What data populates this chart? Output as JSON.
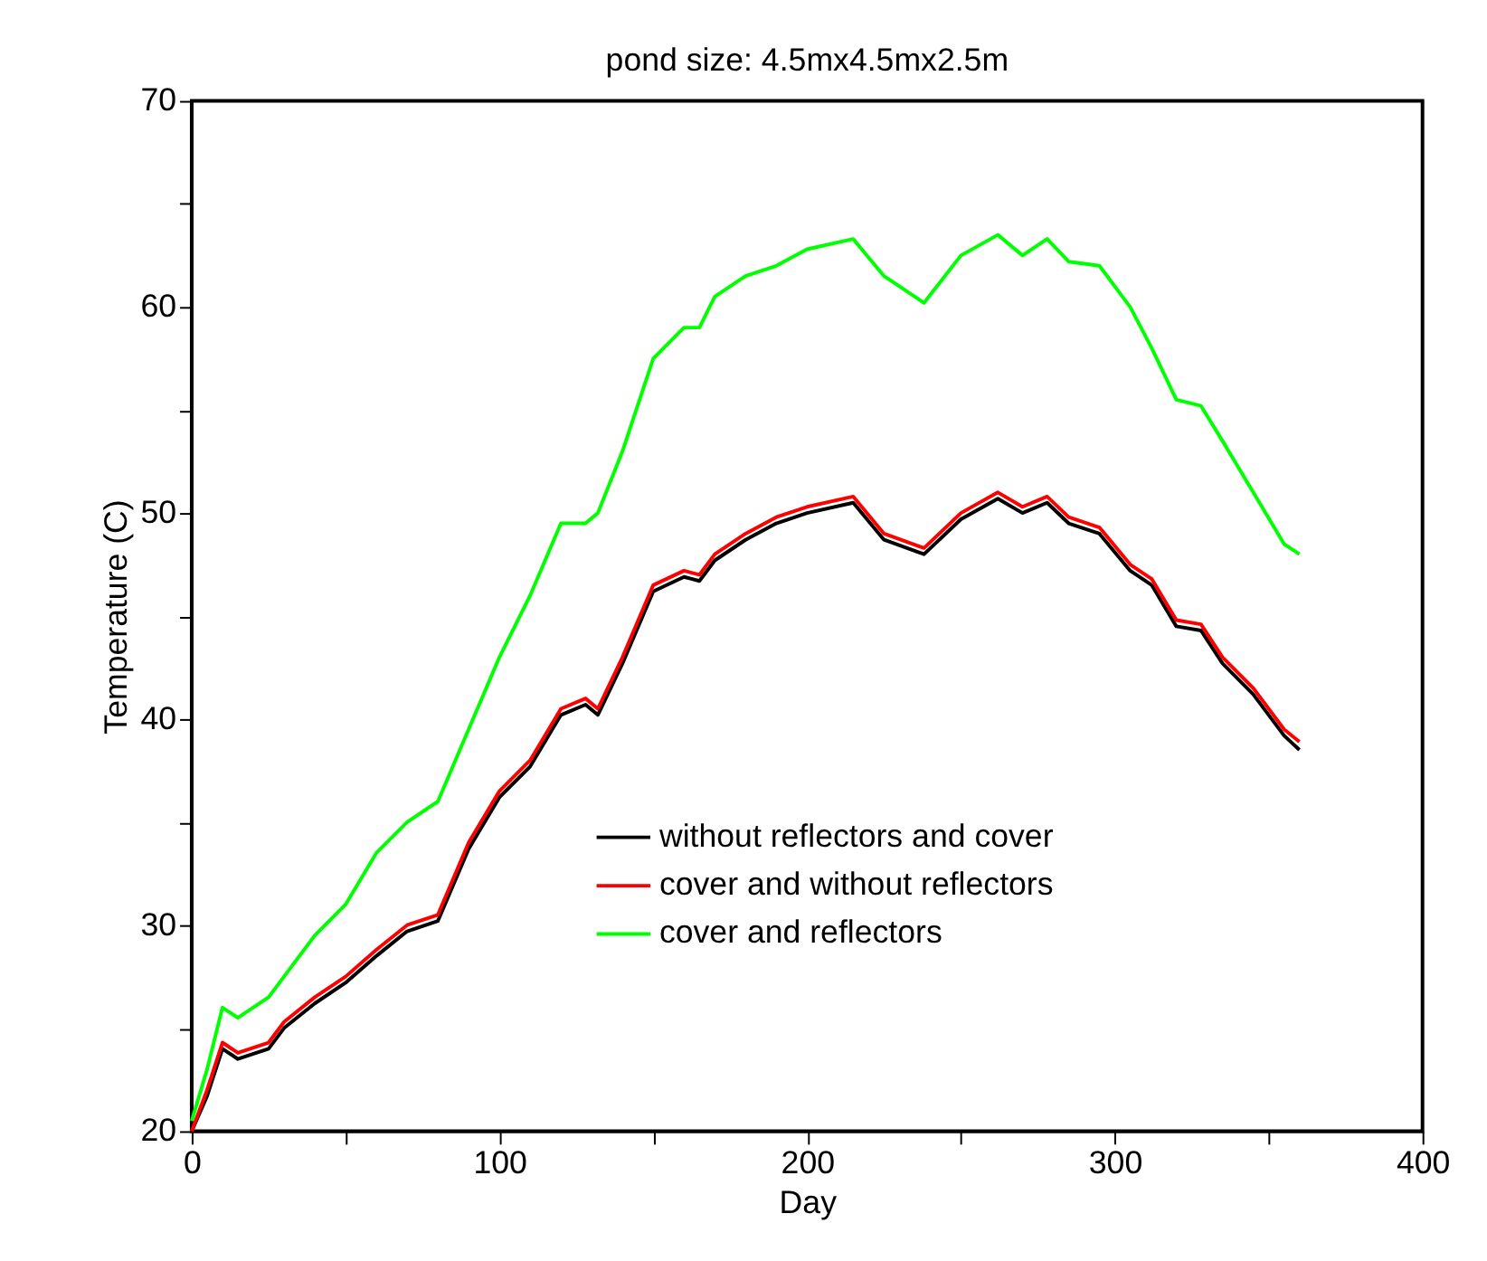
{
  "chart_data": {
    "type": "line",
    "title": "pond size: 4.5mx4.5mx2.5m",
    "xlabel": "Day",
    "ylabel": "Temperature (C)",
    "xlim": [
      0,
      400
    ],
    "ylim": [
      20,
      70
    ],
    "xticks": [
      0,
      {
        "value": 50,
        "label": null
      },
      100,
      {
        "value": 150,
        "label": null
      },
      200,
      {
        "value": 250,
        "label": null
      },
      300,
      {
        "value": 350,
        "label": null
      },
      400
    ],
    "yticks": [
      20,
      {
        "value": 25,
        "label": null
      },
      30,
      {
        "value": 35,
        "label": null
      },
      40,
      {
        "value": 45,
        "label": null
      },
      50,
      {
        "value": 55,
        "label": null
      },
      60,
      {
        "value": 65,
        "label": null
      },
      70
    ],
    "grid": false,
    "legend": "bottom right",
    "marker": "none",
    "line_style": "solid",
    "x": [
      0,
      5,
      10,
      15,
      25,
      30,
      40,
      50,
      60,
      70,
      80,
      90,
      100,
      110,
      120,
      128,
      132,
      140,
      150,
      160,
      165,
      170,
      180,
      190,
      200,
      215,
      225,
      238,
      250,
      262,
      270,
      278,
      285,
      295,
      305,
      312,
      320,
      328,
      335,
      345,
      355,
      360
    ],
    "series": [
      {
        "name": "without reflectors and cover",
        "color": "#000000",
        "values": [
          20,
          21.7,
          24,
          23.5,
          24,
          25,
          26.2,
          27.2,
          28.5,
          29.7,
          30.2,
          33.7,
          36.2,
          37.7,
          40.2,
          40.7,
          40.2,
          42.7,
          46.2,
          46.9,
          46.7,
          47.7,
          48.7,
          49.5,
          50,
          50.5,
          48.7,
          48,
          49.7,
          50.7,
          50,
          50.5,
          49.5,
          49,
          47.2,
          46.5,
          44.5,
          44.3,
          42.7,
          41.2,
          39.2,
          38.5
        ]
      },
      {
        "name": "cover and without reflectors",
        "color": "#ff0000",
        "values": [
          20,
          22,
          24.3,
          23.8,
          24.3,
          25.3,
          26.5,
          27.5,
          28.8,
          30,
          30.5,
          34,
          36.5,
          38,
          40.5,
          41,
          40.5,
          43,
          46.5,
          47.2,
          47,
          48,
          49,
          49.8,
          50.3,
          50.8,
          49,
          48.3,
          50,
          51,
          50.3,
          50.8,
          49.8,
          49.3,
          47.5,
          46.8,
          44.8,
          44.6,
          43,
          41.5,
          39.5,
          38.9
        ]
      },
      {
        "name": "cover and reflectors",
        "color": "#00ff00",
        "values": [
          20.5,
          23,
          26,
          25.5,
          26.5,
          27.5,
          29.5,
          31,
          33.5,
          35,
          36,
          39.5,
          43,
          46,
          49.5,
          49.5,
          50,
          53,
          57.5,
          59,
          59,
          60.5,
          61.5,
          62,
          62.8,
          63.3,
          61.5,
          60.2,
          62.5,
          63.5,
          62.5,
          63.3,
          62.2,
          62,
          60,
          58,
          55.5,
          55.2,
          53.5,
          51,
          48.5,
          48
        ]
      }
    ]
  }
}
